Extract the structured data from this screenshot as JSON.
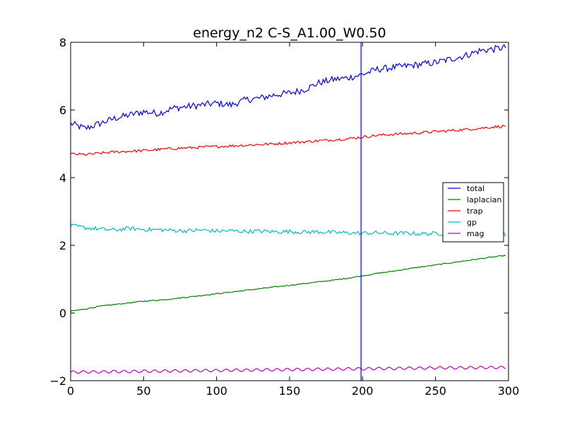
{
  "chart_data": {
    "type": "line",
    "title": "energy_n2 C-S_A1.00_W0.50",
    "xlabel": "",
    "ylabel": "",
    "xlim": [
      0,
      300
    ],
    "ylim": [
      -2,
      8
    ],
    "xticks": [
      0,
      50,
      100,
      150,
      200,
      250,
      300
    ],
    "yticks": [
      -2,
      0,
      2,
      4,
      6,
      8
    ],
    "grid": false,
    "legend": "center-right",
    "vline": {
      "x": 199,
      "color": "#0000ff"
    },
    "series": [
      {
        "name": "total",
        "color": "#0000ff",
        "x": [
          0,
          10,
          20,
          30,
          40,
          50,
          60,
          70,
          80,
          90,
          100,
          110,
          120,
          130,
          140,
          150,
          160,
          170,
          180,
          190,
          200,
          210,
          220,
          230,
          240,
          250,
          260,
          270,
          280,
          290,
          298
        ],
        "y": [
          5.6,
          5.45,
          5.6,
          5.75,
          5.85,
          5.95,
          5.9,
          6.05,
          6.1,
          6.15,
          6.2,
          6.15,
          6.3,
          6.35,
          6.45,
          6.5,
          6.6,
          6.8,
          6.9,
          6.95,
          7.05,
          7.2,
          7.25,
          7.3,
          7.35,
          7.4,
          7.5,
          7.6,
          7.75,
          7.8,
          7.85
        ],
        "noise": 0.1
      },
      {
        "name": "laplacian",
        "color": "#008000",
        "x": [
          0,
          10,
          20,
          30,
          40,
          50,
          60,
          70,
          80,
          90,
          100,
          110,
          120,
          130,
          140,
          150,
          160,
          170,
          180,
          190,
          200,
          210,
          220,
          230,
          240,
          250,
          260,
          270,
          280,
          290,
          298
        ],
        "y": [
          0.05,
          0.12,
          0.2,
          0.25,
          0.3,
          0.35,
          0.38,
          0.42,
          0.47,
          0.52,
          0.57,
          0.62,
          0.67,
          0.72,
          0.77,
          0.82,
          0.87,
          0.92,
          0.97,
          1.03,
          1.1,
          1.17,
          1.23,
          1.3,
          1.36,
          1.42,
          1.48,
          1.54,
          1.6,
          1.66,
          1.7
        ],
        "noise": 0.015
      },
      {
        "name": "trap",
        "color": "#ff0000",
        "x": [
          0,
          10,
          20,
          30,
          40,
          50,
          60,
          70,
          80,
          90,
          100,
          110,
          120,
          130,
          140,
          150,
          160,
          170,
          180,
          190,
          200,
          210,
          220,
          230,
          240,
          250,
          260,
          270,
          280,
          290,
          298
        ],
        "y": [
          4.7,
          4.68,
          4.72,
          4.76,
          4.78,
          4.8,
          4.83,
          4.86,
          4.88,
          4.9,
          4.92,
          4.94,
          4.96,
          4.98,
          5.0,
          5.03,
          5.06,
          5.09,
          5.12,
          5.15,
          5.2,
          5.25,
          5.28,
          5.3,
          5.33,
          5.36,
          5.39,
          5.42,
          5.46,
          5.5,
          5.52
        ],
        "noise": 0.04
      },
      {
        "name": "gp",
        "color": "#00bfbf",
        "x": [
          0,
          10,
          20,
          30,
          40,
          50,
          60,
          70,
          80,
          90,
          100,
          110,
          120,
          130,
          140,
          150,
          160,
          170,
          180,
          190,
          200,
          210,
          220,
          230,
          240,
          250,
          260,
          270,
          280,
          290,
          298
        ],
        "y": [
          2.58,
          2.52,
          2.48,
          2.45,
          2.5,
          2.47,
          2.46,
          2.44,
          2.43,
          2.45,
          2.42,
          2.43,
          2.41,
          2.42,
          2.4,
          2.41,
          2.39,
          2.4,
          2.38,
          2.37,
          2.36,
          2.37,
          2.35,
          2.36,
          2.34,
          2.35,
          2.34,
          2.33,
          2.32,
          2.33,
          2.32
        ],
        "noise": 0.06
      },
      {
        "name": "mag",
        "color": "#bf00bf",
        "x": [
          0,
          10,
          20,
          30,
          40,
          50,
          60,
          70,
          80,
          90,
          100,
          110,
          120,
          130,
          140,
          150,
          160,
          170,
          180,
          190,
          200,
          210,
          220,
          230,
          240,
          250,
          260,
          270,
          280,
          290,
          298
        ],
        "y": [
          -1.75,
          -1.74,
          -1.74,
          -1.73,
          -1.73,
          -1.72,
          -1.72,
          -1.71,
          -1.71,
          -1.7,
          -1.7,
          -1.69,
          -1.69,
          -1.68,
          -1.68,
          -1.67,
          -1.67,
          -1.66,
          -1.66,
          -1.65,
          -1.65,
          -1.64,
          -1.64,
          -1.63,
          -1.63,
          -1.62,
          -1.62,
          -1.62,
          -1.61,
          -1.61,
          -1.61
        ],
        "oscillation": 0.04
      }
    ]
  }
}
